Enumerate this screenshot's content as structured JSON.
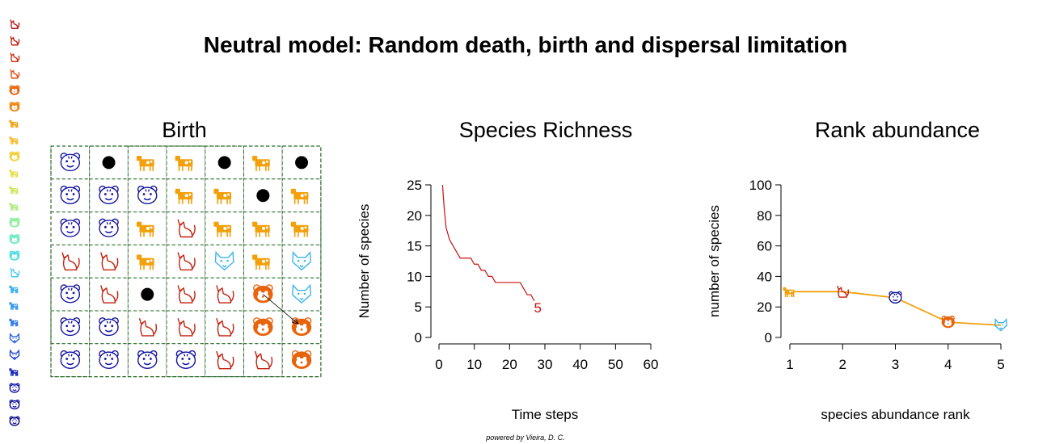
{
  "title": "Neutral model:  Random death, birth and dispersal limitation",
  "footer": "powered by Vieira, D. C.",
  "species_colors": [
    "#c01818",
    "#c81c10",
    "#d02e10",
    "#e04a10",
    "#e86a14",
    "#f08a18",
    "#f4a41c",
    "#f8bc30",
    "#f4d040",
    "#e8e050",
    "#d0e860",
    "#b0ec80",
    "#90f0a0",
    "#70ecc0",
    "#58e0e0",
    "#4cc8f0",
    "#40b0f4",
    "#3c98f0",
    "#347ce8",
    "#2c60dc",
    "#2444cc",
    "#1c2cbc",
    "#1418ac",
    "#10109c",
    "#0c0c90"
  ],
  "grid_panel": {
    "title": "Birth",
    "rows": 7,
    "cols": 7,
    "cells": [
      [
        "tiger",
        "dead",
        "cow",
        "cow",
        "dead",
        "cow",
        "dead"
      ],
      [
        "tiger",
        "tiger",
        "tiger",
        "cow",
        "cow",
        "dead",
        "cow"
      ],
      [
        "tiger",
        "tiger",
        "cow",
        "cat",
        "cow",
        "cow",
        "cow"
      ],
      [
        "cat",
        "cat",
        "cow",
        "cat",
        "wolf",
        "cow",
        "wolf"
      ],
      [
        "tiger",
        "cat",
        "dead",
        "cat",
        "cat",
        "panda",
        "wolf"
      ],
      [
        "tiger",
        "tiger",
        "cat",
        "cat",
        "cat",
        "panda",
        "panda"
      ],
      [
        "tiger",
        "tiger",
        "tiger",
        "tiger",
        "cat",
        "cat",
        "panda"
      ]
    ],
    "species_color": {
      "tiger": "#1414a0",
      "cow": "#f2a10c",
      "cat": "#c4200e",
      "wolf": "#3cb4ee",
      "panda": "#e8640c",
      "dead": "#000000"
    },
    "dispersal_arrow": {
      "from": [
        4,
        5
      ],
      "to": [
        5,
        6
      ]
    }
  },
  "chart_data": [
    {
      "type": "line",
      "title": "Species Richness",
      "xlabel": "Time steps",
      "ylabel": "Number of species",
      "xlim": [
        0,
        60
      ],
      "ylim": [
        0,
        25
      ],
      "xticks": [
        0,
        10,
        20,
        30,
        40,
        50,
        60
      ],
      "yticks": [
        0,
        5,
        10,
        15,
        20,
        25
      ],
      "color": "#c81010",
      "x": [
        1,
        1.5,
        2,
        2.5,
        3,
        4,
        5,
        6,
        7,
        8,
        9,
        10,
        11,
        12,
        13,
        14,
        15,
        16,
        17,
        18,
        19,
        20,
        21,
        22,
        23,
        24,
        25,
        26,
        27
      ],
      "y": [
        25,
        21,
        18,
        17,
        16,
        15,
        14,
        13,
        13,
        13,
        13,
        12,
        12,
        11,
        11,
        10,
        10,
        9,
        9,
        9,
        9,
        9,
        9,
        9,
        9,
        8,
        7,
        7,
        6
      ],
      "end_label": "5",
      "end_label_x": 28,
      "end_label_y": 5
    },
    {
      "type": "line",
      "title": "Rank abundance",
      "xlabel": "species abundance rank",
      "ylabel": "number of species",
      "xlim": [
        1,
        5
      ],
      "ylim": [
        0,
        100
      ],
      "xticks": [
        1,
        2,
        3,
        4,
        5
      ],
      "yticks": [
        0,
        20,
        40,
        60,
        80,
        100
      ],
      "line_color": "#f2a10c",
      "x": [
        1,
        2,
        3,
        4,
        5
      ],
      "y": [
        30,
        30,
        26,
        10,
        8
      ],
      "point_icons": [
        "cow",
        "cat",
        "tiger",
        "panda",
        "wolf"
      ],
      "point_colors": [
        "#f2a10c",
        "#c4200e",
        "#1414a0",
        "#e8640c",
        "#3cb4ee"
      ]
    }
  ]
}
